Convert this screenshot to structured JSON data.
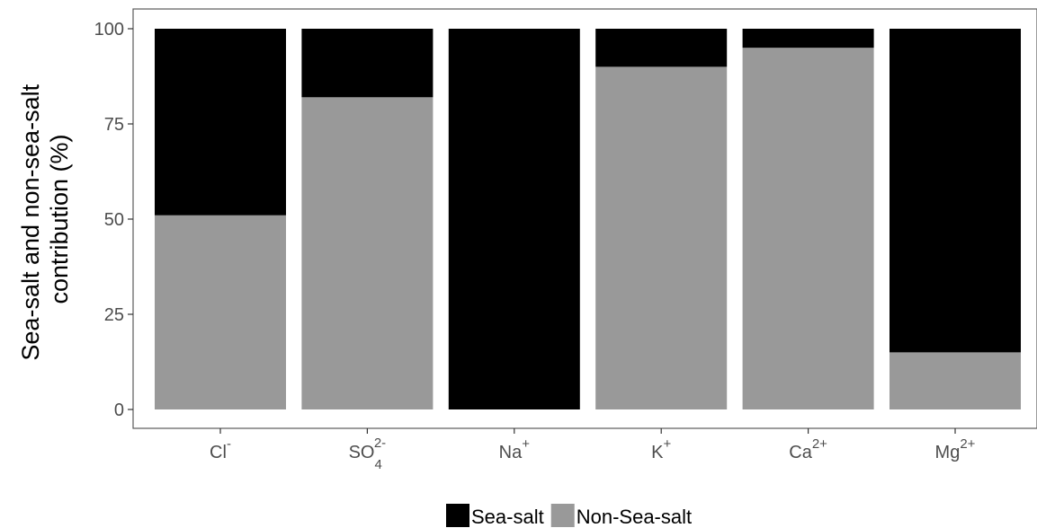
{
  "chart_data": {
    "type": "bar",
    "stacked": true,
    "categories": [
      {
        "base": "Cl",
        "sub": "",
        "sup": "-"
      },
      {
        "base": "SO",
        "sub": "4",
        "sup": "2-"
      },
      {
        "base": "Na",
        "sub": "",
        "sup": "+"
      },
      {
        "base": "K",
        "sub": "",
        "sup": "+"
      },
      {
        "base": "Ca",
        "sub": "",
        "sup": "2+"
      },
      {
        "base": "Mg",
        "sub": "",
        "sup": "2+"
      }
    ],
    "series": [
      {
        "name": "Non-Sea-salt",
        "color": "#999999",
        "values": [
          51,
          82,
          0,
          90,
          95,
          15
        ]
      },
      {
        "name": "Sea-salt",
        "color": "#000000",
        "values": [
          49,
          18,
          100,
          10,
          5,
          85
        ]
      }
    ],
    "ylabel_lines": [
      "Sea-salt and non-sea-salt",
      "contribution (%)"
    ],
    "xlabel": "",
    "ylim": [
      0,
      100
    ],
    "yticks": [
      0,
      25,
      50,
      75,
      100
    ],
    "grid": false,
    "legend": {
      "position": "bottom",
      "order": [
        "Sea-salt",
        "Non-Sea-salt"
      ]
    }
  }
}
